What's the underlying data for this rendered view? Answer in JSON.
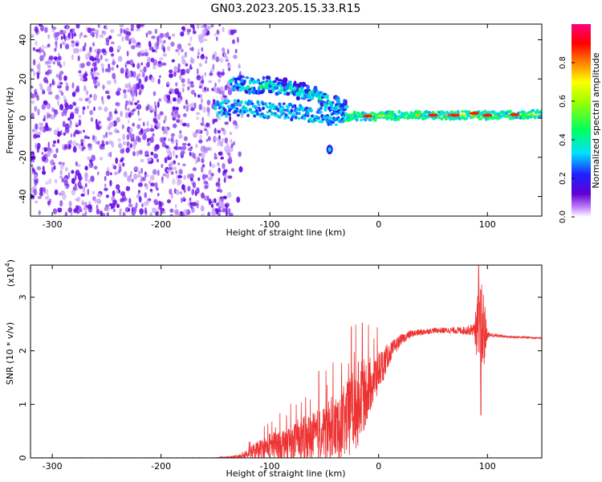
{
  "title": "GN03.2023.205.15.33.R15",
  "chart_data": [
    {
      "type": "heatmap",
      "xlabel": "Height of straight line (km)",
      "ylabel": "Frequency (Hz)",
      "xlim": [
        -320,
        150
      ],
      "ylim": [
        -50,
        48
      ],
      "xticks": [
        -300,
        -200,
        -100,
        0,
        100
      ],
      "yticks": [
        -40,
        -20,
        0,
        20,
        40
      ],
      "colorbar": {
        "label": "Normalized spectral amplitude",
        "range": [
          0,
          1
        ],
        "ticks": [
          0.0,
          0.2,
          0.4,
          0.6,
          0.8
        ],
        "colormap": [
          "#ffffff",
          "#6000d0",
          "#2020ff",
          "#00e0ff",
          "#00ff40",
          "#ffff00",
          "#ff8000",
          "#ff0000",
          "#ff0080"
        ]
      },
      "features": [
        {
          "name": "broadband noise",
          "x_range": [
            -320,
            -135
          ],
          "y_range": [
            -50,
            48
          ],
          "amplitude": 0.1
        },
        {
          "name": "upper branch",
          "points": [
            [
              -135,
              18
            ],
            [
              -120,
              17
            ],
            [
              -100,
              17
            ],
            [
              -80,
              15
            ],
            [
              -60,
              12
            ],
            [
              -45,
              8
            ],
            [
              -30,
              5
            ]
          ],
          "amplitude": 0.35
        },
        {
          "name": "main line",
          "points": [
            [
              -150,
              5
            ],
            [
              -120,
              5
            ],
            [
              -100,
              4
            ],
            [
              -80,
              3
            ],
            [
              -60,
              2
            ],
            [
              -40,
              0
            ],
            [
              -20,
              1
            ],
            [
              0,
              1
            ],
            [
              50,
              1.5
            ],
            [
              100,
              1.5
            ],
            [
              150,
              2
            ]
          ],
          "amplitude": 0.5
        },
        {
          "name": "isolated blob",
          "points": [
            [
              -45,
              -16
            ]
          ],
          "amplitude": 0.35
        }
      ],
      "background_color": "#ffffff",
      "dot_color": "#7a1df0"
    },
    {
      "type": "line",
      "xlabel": "Height of straight line (km)",
      "ylabel": "SNR (10 * v/v)",
      "multiplier": "(x10",
      "multiplier_exp": "4",
      "multiplier_close": ")",
      "xlim": [
        -320,
        150
      ],
      "ylim": [
        0,
        3.6
      ],
      "xticks": [
        -300,
        -200,
        -100,
        0,
        100
      ],
      "yticks": [
        0,
        1,
        2,
        3
      ],
      "line_color": "#ee3333",
      "envelope": {
        "x": [
          -320,
          -150,
          -130,
          -120,
          -110,
          -100,
          -80,
          -60,
          -40,
          -30,
          -20,
          -10,
          0,
          10,
          20,
          30,
          50,
          70,
          80,
          88,
          92,
          96,
          100,
          110,
          120,
          150
        ],
        "mean": [
          0,
          0,
          0.02,
          0.08,
          0.15,
          0.22,
          0.3,
          0.4,
          0.55,
          0.7,
          0.95,
          1.3,
          1.6,
          1.95,
          2.2,
          2.32,
          2.38,
          2.38,
          2.38,
          2.4,
          2.38,
          2.35,
          2.3,
          2.28,
          2.26,
          2.24
        ],
        "spread": [
          0.005,
          0.005,
          0.03,
          0.1,
          0.18,
          0.25,
          0.35,
          0.45,
          0.6,
          0.7,
          0.8,
          0.6,
          0.4,
          0.2,
          0.1,
          0.07,
          0.05,
          0.06,
          0.08,
          0.12,
          0.9,
          0.9,
          0.06,
          0.03,
          0.02,
          0.02
        ]
      },
      "peaks": [
        {
          "x": -55,
          "y": 1.62
        },
        {
          "x": -15,
          "y": 2.52
        },
        {
          "x": -25,
          "y": 2.45
        },
        {
          "x": 92,
          "y": 3.6
        },
        {
          "x": 94,
          "y": 0.8
        }
      ]
    }
  ]
}
